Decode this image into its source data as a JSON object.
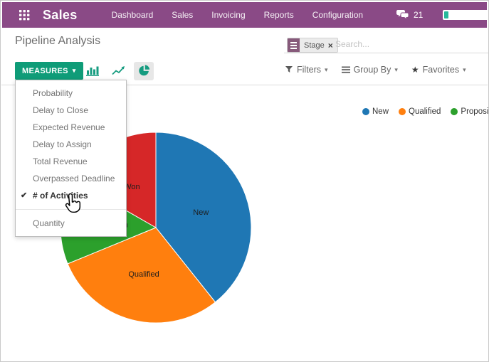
{
  "topbar": {
    "app_label": "Sales",
    "nav_items": [
      "Dashboard",
      "Sales",
      "Invoicing",
      "Reports",
      "Configuration"
    ],
    "message_count": "21"
  },
  "page": {
    "title": "Pipeline Analysis"
  },
  "toolbar": {
    "measures_label": "MEASURES"
  },
  "search": {
    "facet_label": "Stage",
    "placeholder": "Search..."
  },
  "filter_bar": {
    "filters_label": "Filters",
    "group_by_label": "Group By",
    "favorites_label": "Favorites"
  },
  "measures_menu": {
    "items": [
      {
        "label": "Probability",
        "checked": false
      },
      {
        "label": "Delay to Close",
        "checked": false
      },
      {
        "label": "Expected Revenue",
        "checked": false
      },
      {
        "label": "Delay to Assign",
        "checked": false
      },
      {
        "label": "Total Revenue",
        "checked": false
      },
      {
        "label": "Overpassed Deadline",
        "checked": false
      },
      {
        "label": "# of Activities",
        "checked": true
      },
      {
        "label": "Quantity",
        "checked": false,
        "separator_before": true
      }
    ]
  },
  "chart_data": {
    "type": "pie",
    "title": "Pipeline Analysis",
    "measure": "# of Activities",
    "grouped_by": "Stage",
    "start_angle_deg": 0,
    "direction": "clockwise",
    "legend_position": "top-right",
    "slices": [
      {
        "label": "New",
        "percent": 39.3,
        "color": "#1f77b4"
      },
      {
        "label": "Qualified",
        "percent": 29.5,
        "color": "#ff7f0e"
      },
      {
        "label": "Proposition",
        "percent": 14.5,
        "color": "#2ca02c"
      },
      {
        "label": "Won",
        "percent": 16.7,
        "color": "#d62728"
      }
    ]
  },
  "icons": {
    "caret": "▾",
    "check": "✔",
    "star": "★",
    "close": "×"
  },
  "colors": {
    "topbar_bg": "#8a4a86",
    "primary_button": "#0f9c78",
    "chart_icon": "#169c80",
    "facet_purple": "#875a7b",
    "meter_fill": "#26b99a"
  }
}
